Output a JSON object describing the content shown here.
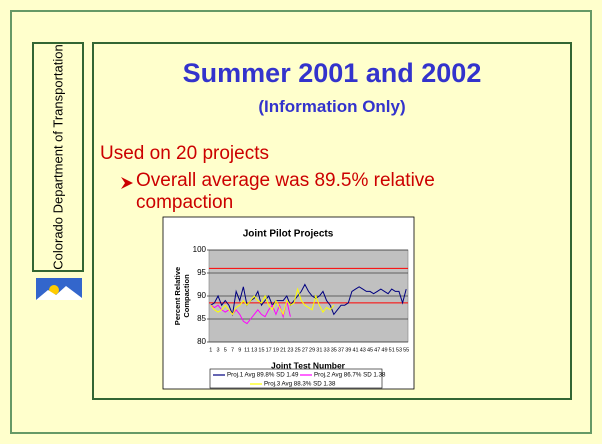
{
  "sidebar": {
    "text": "Colorado Department of Transportation"
  },
  "slide": {
    "title": "Summer 2001 and 2002",
    "subtitle": "(Information Only)",
    "bullet": "Used on 20 projects",
    "subbullet": "Overall average was 89.5% relative compaction"
  },
  "chart_data": {
    "type": "line",
    "title": "Joint Pilot Projects",
    "y_label": "Percent Relative Compaction",
    "x_label": "Joint Test Number",
    "categories": [
      1,
      null,
      3,
      null,
      5,
      null,
      7,
      null,
      9,
      null,
      11,
      null,
      13,
      null,
      15,
      null,
      17,
      null,
      19,
      null,
      21,
      null,
      23,
      null,
      25,
      null,
      27,
      null,
      29,
      null,
      31,
      null,
      33,
      null,
      35,
      null,
      37,
      null,
      39,
      null,
      41,
      null,
      43,
      null,
      45,
      null,
      47,
      null,
      49,
      null,
      51,
      null,
      53,
      null,
      55
    ],
    "ylim": [
      80,
      100
    ],
    "yticks": [
      80,
      85,
      90,
      95,
      100
    ],
    "grid": true,
    "reference_lines": [
      {
        "value": 96,
        "color": "#ff0000"
      },
      {
        "value": 88.5,
        "color": "#ff0000"
      }
    ],
    "series": [
      {
        "name": "Proj.1 Avg 89.8% SD 1.49",
        "color": "#000080",
        "values": [
          88,
          88.5,
          90,
          88,
          89,
          88,
          86,
          91,
          89,
          92,
          88,
          89,
          89.5,
          91,
          88,
          89,
          90,
          88,
          89,
          89,
          89,
          90,
          88,
          89,
          90,
          91,
          92.5,
          91,
          90,
          89.5,
          90,
          91,
          89,
          88,
          86,
          87,
          88,
          88,
          88.5,
          91,
          91.5,
          92,
          91.5,
          91,
          91,
          90.5,
          91,
          91.5,
          91,
          90.5,
          91.5,
          91,
          91,
          88.5,
          91.5
        ]
      },
      {
        "name": "Proj.2 Avg 86.7% SD 1.38",
        "color": "#ff00ff",
        "values": [
          88,
          87.5,
          88,
          87,
          86.5,
          87,
          86,
          87,
          86,
          84.5,
          84,
          85,
          86,
          87,
          86,
          85.5,
          87,
          88,
          86,
          88,
          85.5,
          89,
          85.5,
          null,
          null,
          null,
          null,
          null,
          null,
          null,
          null,
          null,
          null,
          null,
          null,
          null,
          null,
          null,
          null,
          null,
          null,
          null,
          null,
          null,
          null,
          null,
          null,
          null,
          null,
          null,
          null,
          null,
          null,
          null,
          null
        ]
      },
      {
        "name": "Proj.3 Avg 88.3% SD 1.38",
        "color": "#ffff00",
        "values": [
          88,
          87,
          86.5,
          87,
          88,
          87,
          86,
          87.5,
          88,
          89,
          88,
          89,
          90,
          89,
          88.5,
          90,
          88,
          87,
          89,
          87.5,
          86,
          89,
          88,
          88.5,
          91.5,
          89,
          88,
          87.5,
          87,
          90,
          88,
          86.5,
          87.5,
          87,
          88,
          null,
          null,
          null,
          null,
          null,
          null,
          null,
          null,
          null,
          null,
          null,
          null,
          null,
          null,
          null,
          null,
          null,
          null,
          null,
          null
        ]
      }
    ]
  }
}
